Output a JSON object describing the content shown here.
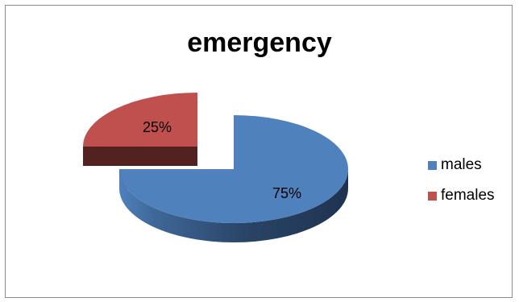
{
  "chart_data": {
    "type": "pie",
    "title": "emergency",
    "categories": [
      "males",
      "females"
    ],
    "values": [
      75,
      25
    ],
    "labels": [
      "75%",
      "25%"
    ],
    "colors": [
      "#4f81bd",
      "#c0504d"
    ],
    "exploded": [
      "",
      "females"
    ],
    "style": "3d",
    "legend": "right"
  }
}
